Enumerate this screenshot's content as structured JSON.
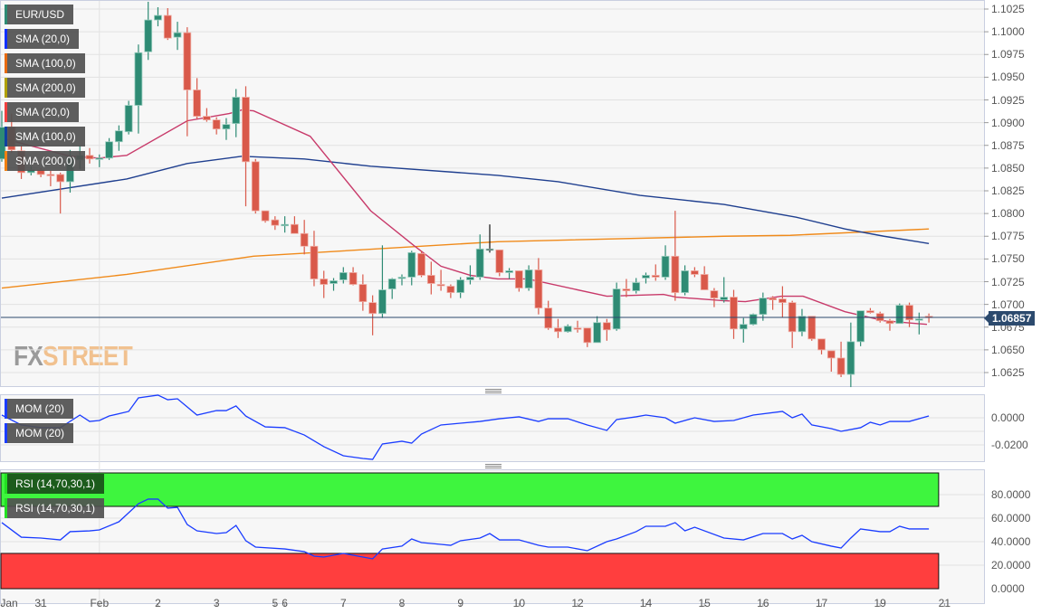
{
  "chart_data": {
    "type": "candlestick",
    "symbol": "EUR/USD",
    "price_ylim": [
      1.061,
      1.1035
    ],
    "price_ticks": [
      "1.1025",
      "1.1000",
      "1.0975",
      "1.0950",
      "1.0925",
      "1.0900",
      "1.0875",
      "1.0850",
      "1.0825",
      "1.0800",
      "1.0775",
      "1.0750",
      "1.0725",
      "1.0700",
      "1.0675",
      "1.0650",
      "1.0625"
    ],
    "last_price": "1.06857",
    "x_ticks": [
      {
        "label": "Jan",
        "idx": 0
      },
      {
        "label": "31",
        "idx": 4
      },
      {
        "label": "Feb",
        "idx": 10
      },
      {
        "label": "2",
        "idx": 16
      },
      {
        "label": "3",
        "idx": 22
      },
      {
        "label": "5",
        "idx": 28
      },
      {
        "label": "6",
        "idx": 29
      },
      {
        "label": "7",
        "idx": 35
      },
      {
        "label": "8",
        "idx": 41
      },
      {
        "label": "9",
        "idx": 47
      },
      {
        "label": "10",
        "idx": 53
      },
      {
        "label": "12",
        "idx": 59
      },
      {
        "label": "14",
        "idx": 66
      },
      {
        "label": "15",
        "idx": 72
      },
      {
        "label": "16",
        "idx": 78
      },
      {
        "label": "17",
        "idx": 84
      },
      {
        "label": "19",
        "idx": 90
      },
      {
        "label": "21",
        "idx": 96.6
      }
    ],
    "candles_ohlc": [
      [
        1.086,
        1.0913,
        1.0857,
        1.0895
      ],
      [
        1.0895,
        1.091,
        1.0867,
        1.087
      ],
      [
        1.0869,
        1.0875,
        1.0838,
        1.0845
      ],
      [
        1.0845,
        1.0852,
        1.0842,
        1.0848
      ],
      [
        1.0848,
        1.085,
        1.084,
        1.0843
      ],
      [
        1.0843,
        1.0847,
        1.083,
        1.0842
      ],
      [
        1.0843,
        1.0845,
        1.08,
        1.0835
      ],
      [
        1.0835,
        1.087,
        1.0823,
        1.0862
      ],
      [
        1.0859,
        1.0875,
        1.0849,
        1.0864
      ],
      [
        1.0864,
        1.0872,
        1.0855,
        1.086
      ],
      [
        1.086,
        1.0865,
        1.0851,
        1.0861
      ],
      [
        1.0861,
        1.0883,
        1.0859,
        1.0879
      ],
      [
        1.0879,
        1.0897,
        1.0869,
        1.0891
      ],
      [
        1.089,
        1.0924,
        1.0887,
        1.0919
      ],
      [
        1.0919,
        1.0986,
        1.0888,
        1.0977
      ],
      [
        1.0978,
        1.1033,
        1.0969,
        1.1013
      ],
      [
        1.1013,
        1.1027,
        1.1006,
        1.1018
      ],
      [
        1.1018,
        1.1026,
        1.0991,
        1.0993
      ],
      [
        1.0994,
        1.1011,
        1.098,
        1.0999
      ],
      [
        1.0999,
        1.1005,
        1.0885,
        1.0936
      ],
      [
        1.0936,
        1.0949,
        1.0904,
        1.0907
      ],
      [
        1.0907,
        1.0916,
        1.0901,
        1.0903
      ],
      [
        1.0903,
        1.0906,
        1.0887,
        1.0893
      ],
      [
        1.0893,
        1.0905,
        1.0881,
        1.0898
      ],
      [
        1.0899,
        1.0937,
        1.0884,
        1.0928
      ],
      [
        1.0928,
        1.094,
        1.0808,
        1.0857
      ],
      [
        1.0857,
        1.086,
        1.08,
        1.0803
      ],
      [
        1.0803,
        1.0803,
        1.079,
        1.0792
      ],
      [
        1.0793,
        1.0797,
        1.0782,
        1.0787
      ],
      [
        1.0788,
        1.0797,
        1.0779,
        1.0788
      ],
      [
        1.0788,
        1.0797,
        1.0778,
        1.0778
      ],
      [
        1.0778,
        1.0793,
        1.0755,
        1.0764
      ],
      [
        1.0764,
        1.0781,
        1.072,
        1.0728
      ],
      [
        1.0728,
        1.0737,
        1.0707,
        1.0722
      ],
      [
        1.0723,
        1.0729,
        1.0715,
        1.0726
      ],
      [
        1.0727,
        1.0741,
        1.0723,
        1.0735
      ],
      [
        1.0735,
        1.0741,
        1.0721,
        1.0722
      ],
      [
        1.0722,
        1.0733,
        1.0693,
        1.0703
      ],
      [
        1.0702,
        1.071,
        1.0666,
        1.069
      ],
      [
        1.069,
        1.0765,
        1.0685,
        1.0716
      ],
      [
        1.0717,
        1.0729,
        1.0706,
        1.0728
      ],
      [
        1.0729,
        1.0733,
        1.0721,
        1.073
      ],
      [
        1.073,
        1.0759,
        1.0721,
        1.0757
      ],
      [
        1.0756,
        1.0759,
        1.073,
        1.0732
      ],
      [
        1.0732,
        1.0747,
        1.0711,
        1.0723
      ],
      [
        1.0722,
        1.0738,
        1.0715,
        1.0721
      ],
      [
        1.072,
        1.0722,
        1.0707,
        1.0713
      ],
      [
        1.0713,
        1.073,
        1.0707,
        1.0727
      ],
      [
        1.0727,
        1.0743,
        1.0722,
        1.073
      ],
      [
        1.073,
        1.0777,
        1.0727,
        1.0761
      ],
      [
        1.076,
        1.0788,
        1.0757,
        1.0761
      ],
      [
        1.076,
        1.076,
        1.0731,
        1.0735
      ],
      [
        1.0735,
        1.074,
        1.0728,
        1.0737
      ],
      [
        1.0737,
        1.0737,
        1.0714,
        1.0718
      ],
      [
        1.0718,
        1.0743,
        1.0715,
        1.0738
      ],
      [
        1.0738,
        1.0751,
        1.0689,
        1.0696
      ],
      [
        1.0696,
        1.0704,
        1.0672,
        1.0674
      ],
      [
        1.0674,
        1.0684,
        1.0663,
        1.067
      ],
      [
        1.067,
        1.0678,
        1.0669,
        1.0676
      ],
      [
        1.0674,
        1.0682,
        1.0669,
        1.0673
      ],
      [
        1.0674,
        1.0674,
        1.0653,
        1.0658
      ],
      [
        1.0658,
        1.0687,
        1.0658,
        1.068
      ],
      [
        1.068,
        1.0684,
        1.066,
        1.0672
      ],
      [
        1.0673,
        1.0724,
        1.0671,
        1.0717
      ],
      [
        1.0717,
        1.0728,
        1.0708,
        1.0715
      ],
      [
        1.0715,
        1.0729,
        1.0712,
        1.0724
      ],
      [
        1.0729,
        1.0735,
        1.0723,
        1.0732
      ],
      [
        1.0732,
        1.0744,
        1.0726,
        1.073
      ],
      [
        1.073,
        1.0765,
        1.0727,
        1.0753
      ],
      [
        1.0753,
        1.0803,
        1.0704,
        1.0713
      ],
      [
        1.0713,
        1.0743,
        1.071,
        1.0737
      ],
      [
        1.0737,
        1.0741,
        1.073,
        1.0733
      ],
      [
        1.0733,
        1.0742,
        1.0716,
        1.0716
      ],
      [
        1.0715,
        1.0718,
        1.0697,
        1.0707
      ],
      [
        1.0705,
        1.073,
        1.0702,
        1.0708
      ],
      [
        1.0708,
        1.0716,
        1.0662,
        1.0673
      ],
      [
        1.0673,
        1.0685,
        1.0658,
        1.0678
      ],
      [
        1.0678,
        1.069,
        1.0677,
        1.0689
      ],
      [
        1.0689,
        1.0713,
        1.0682,
        1.0707
      ],
      [
        1.0707,
        1.0709,
        1.0694,
        1.0705
      ],
      [
        1.0706,
        1.072,
        1.0686,
        1.0702
      ],
      [
        1.0702,
        1.0704,
        1.0652,
        1.067
      ],
      [
        1.067,
        1.0695,
        1.0665,
        1.0687
      ],
      [
        1.0687,
        1.0687,
        1.066,
        1.0662
      ],
      [
        1.0662,
        1.0662,
        1.0645,
        1.065
      ],
      [
        1.0649,
        1.0649,
        1.0626,
        1.0641
      ],
      [
        1.0641,
        1.0659,
        1.062,
        1.0623
      ],
      [
        1.0623,
        1.068,
        1.0609,
        1.0659
      ],
      [
        1.0659,
        1.0693,
        1.0654,
        1.0693
      ],
      [
        1.0693,
        1.0696,
        1.069,
        1.0691
      ],
      [
        1.069,
        1.0692,
        1.068,
        1.0682
      ],
      [
        1.0682,
        1.0684,
        1.0671,
        1.0679
      ],
      [
        1.0679,
        1.0701,
        1.0679,
        1.0699
      ],
      [
        1.0699,
        1.0702,
        1.0675,
        1.0683
      ],
      [
        1.0683,
        1.0691,
        1.0667,
        1.0684
      ],
      [
        1.0687,
        1.069,
        1.068,
        1.06857
      ]
    ],
    "sma20": [
      [
        0,
        1.0883
      ],
      [
        7,
        1.0863
      ],
      [
        10,
        1.0861
      ],
      [
        12.8,
        1.0864
      ],
      [
        19,
        1.0902
      ],
      [
        23.3,
        1.091
      ],
      [
        24.6,
        1.0914
      ],
      [
        25.8,
        1.0913
      ],
      [
        31.6,
        1.0885
      ],
      [
        37.8,
        1.0803
      ],
      [
        42.2,
        1.0765
      ],
      [
        45,
        1.0742
      ],
      [
        48,
        1.0732
      ],
      [
        50.8,
        1.0728
      ],
      [
        53.9,
        1.0728
      ],
      [
        62,
        1.0709
      ],
      [
        67.8,
        1.0711
      ],
      [
        69.1,
        1.0708
      ],
      [
        74,
        1.0704
      ],
      [
        76.2,
        1.0703
      ],
      [
        79.9,
        1.0709
      ],
      [
        82.1,
        1.0709
      ],
      [
        86.4,
        1.0692
      ],
      [
        90.4,
        1.0682
      ],
      [
        94.8,
        1.0678
      ]
    ],
    "sma100": [
      [
        0,
        1.0817
      ],
      [
        12.8,
        1.0838
      ],
      [
        19,
        1.0855
      ],
      [
        24.6,
        1.0863
      ],
      [
        31,
        1.086
      ],
      [
        37.8,
        1.0852
      ],
      [
        50.8,
        1.0842
      ],
      [
        57,
        1.0835
      ],
      [
        65.4,
        1.082
      ],
      [
        74,
        1.081
      ],
      [
        81.4,
        1.0796
      ],
      [
        86.4,
        1.0783
      ],
      [
        90.4,
        1.0775
      ],
      [
        95,
        1.0767
      ]
    ],
    "sma200": [
      [
        0,
        1.0718
      ],
      [
        12.8,
        1.0733
      ],
      [
        25.8,
        1.0753
      ],
      [
        50.8,
        1.0769
      ],
      [
        74,
        1.0775
      ],
      [
        80.8,
        1.0776
      ],
      [
        95,
        1.0783
      ]
    ],
    "mom": {
      "label": "MOM (20)",
      "ticks": [
        "0.0000",
        "-0.0200"
      ],
      "values": [
        [
          0,
          0.002
        ],
        [
          2,
          -0.0053
        ],
        [
          4,
          -0.0073
        ],
        [
          6,
          -0.0073
        ],
        [
          8,
          0.002
        ],
        [
          9,
          -0.0027
        ],
        [
          10,
          -0.002
        ],
        [
          11,
          0.0013
        ],
        [
          13,
          0.0047
        ],
        [
          14,
          0.0147
        ],
        [
          16,
          0.0167
        ],
        [
          17,
          0.0133
        ],
        [
          18,
          0.014
        ],
        [
          20,
          0.002
        ],
        [
          22,
          0.0053
        ],
        [
          23,
          0.0053
        ],
        [
          24,
          0.0087
        ],
        [
          25,
          0.0013
        ],
        [
          27,
          -0.0067
        ],
        [
          29,
          -0.0073
        ],
        [
          31,
          -0.0127
        ],
        [
          33,
          -0.0213
        ],
        [
          35,
          -0.028
        ],
        [
          37,
          -0.03
        ],
        [
          38,
          -0.0307
        ],
        [
          39,
          -0.0193
        ],
        [
          41,
          -0.0173
        ],
        [
          42,
          -0.0187
        ],
        [
          43,
          -0.012
        ],
        [
          45,
          -0.0053
        ],
        [
          47,
          -0.004
        ],
        [
          49,
          -0.0027
        ],
        [
          51,
          -0.0007
        ],
        [
          53,
          0.0007
        ],
        [
          55,
          -0.0027
        ],
        [
          56,
          -0.0007
        ],
        [
          58,
          -0.0007
        ],
        [
          60,
          -0.0053
        ],
        [
          62,
          -0.0093
        ],
        [
          63,
          -0.0013
        ],
        [
          65,
          0.0007
        ],
        [
          66,
          0.002
        ],
        [
          68,
          0
        ],
        [
          69,
          -0.004
        ],
        [
          71,
          0
        ],
        [
          73,
          -0.0027
        ],
        [
          75,
          -0.002
        ],
        [
          77,
          0.002
        ],
        [
          80,
          0.0047
        ],
        [
          81,
          0
        ],
        [
          82,
          0.0027
        ],
        [
          83,
          -0.0053
        ],
        [
          85,
          -0.008
        ],
        [
          86,
          -0.01
        ],
        [
          88,
          -0.0073
        ],
        [
          89,
          -0.0033
        ],
        [
          90,
          -0.0053
        ],
        [
          91,
          -0.0027
        ],
        [
          93,
          -0.0027
        ],
        [
          95,
          0.0013
        ]
      ]
    },
    "rsi": {
      "label": "RSI (14,70,30,1)",
      "ticks": [
        "80.0000",
        "60.0000",
        "40.0000",
        "20.0000",
        "0.0000"
      ],
      "overbought": 70,
      "oversold": 30,
      "values": [
        [
          0,
          56.2
        ],
        [
          2,
          43.8
        ],
        [
          4,
          43.1
        ],
        [
          6,
          41.5
        ],
        [
          7,
          48.5
        ],
        [
          9,
          49.2
        ],
        [
          10,
          50
        ],
        [
          12,
          56.9
        ],
        [
          14,
          72.3
        ],
        [
          15,
          76.2
        ],
        [
          16,
          76.2
        ],
        [
          17,
          68.5
        ],
        [
          18,
          69.2
        ],
        [
          19,
          54.6
        ],
        [
          20,
          49.2
        ],
        [
          22,
          46.9
        ],
        [
          23,
          47.7
        ],
        [
          24,
          53.8
        ],
        [
          25,
          40.8
        ],
        [
          26,
          35.4
        ],
        [
          29,
          33.8
        ],
        [
          31,
          31.5
        ],
        [
          32,
          27.7
        ],
        [
          33,
          26.9
        ],
        [
          35,
          30
        ],
        [
          37,
          26.9
        ],
        [
          38,
          25.4
        ],
        [
          39,
          33.8
        ],
        [
          41,
          36.2
        ],
        [
          42,
          42.3
        ],
        [
          43,
          39.2
        ],
        [
          45,
          37.7
        ],
        [
          46,
          36.9
        ],
        [
          47,
          40.8
        ],
        [
          49,
          43.1
        ],
        [
          50,
          46.9
        ],
        [
          51,
          41.5
        ],
        [
          53,
          41.5
        ],
        [
          55,
          36.9
        ],
        [
          56,
          35.4
        ],
        [
          58,
          35.4
        ],
        [
          60,
          32.3
        ],
        [
          62,
          40
        ],
        [
          63,
          42.3
        ],
        [
          65,
          48.5
        ],
        [
          66,
          53.1
        ],
        [
          68,
          53.1
        ],
        [
          69,
          56.2
        ],
        [
          70,
          49.2
        ],
        [
          71,
          52.3
        ],
        [
          74,
          43.1
        ],
        [
          76,
          41.5
        ],
        [
          78,
          46.9
        ],
        [
          80,
          46.9
        ],
        [
          81,
          42.3
        ],
        [
          82,
          45.4
        ],
        [
          83,
          40
        ],
        [
          85,
          36.2
        ],
        [
          86,
          34.6
        ],
        [
          87,
          43.1
        ],
        [
          88,
          50.8
        ],
        [
          90,
          48.5
        ],
        [
          91,
          48.5
        ],
        [
          92,
          53.1
        ],
        [
          93,
          50.8
        ],
        [
          95,
          50.8
        ]
      ]
    },
    "colors": {
      "up": "#2e8b74",
      "down": "#d9594a",
      "sma20": "#c83a6a",
      "sma100": "#1f3f8f",
      "sma200": "#f08a1a",
      "mom": "#1a3cff",
      "rsi": "#1a3cff",
      "overbought_zone": "#3ef53e",
      "oversold_zone": "#ff3e3e",
      "last_price_line": "#2c4a6e"
    }
  },
  "legend": {
    "items": [
      {
        "label": "EUR/USD",
        "color": "#2e8b74"
      },
      {
        "label": "SMA (20,0)",
        "color": "#1030ff"
      },
      {
        "label": "SMA (100,0)",
        "color": "#e86a10"
      },
      {
        "label": "SMA (200,0)",
        "color": "#b0a000"
      },
      {
        "label": "SMA (20,0)",
        "color": "#f04040"
      },
      {
        "label": "SMA (100,0)",
        "color": "#1040a0"
      },
      {
        "label": "SMA (200,0)",
        "color": "#f08010"
      }
    ],
    "mom_items": [
      "MOM (20)",
      "MOM (20)"
    ],
    "rsi_items": [
      "RSI (14,70,30,1)",
      "RSI (14,70,30,1)"
    ]
  },
  "logo": {
    "fx": "FX",
    "street": "STREET"
  }
}
